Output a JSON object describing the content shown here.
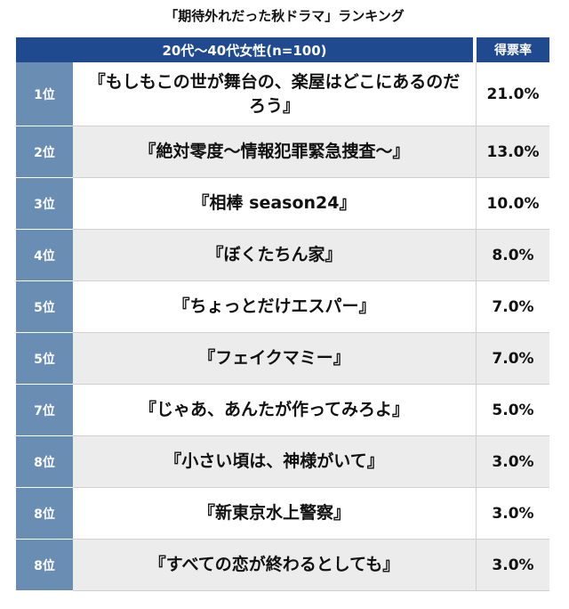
{
  "page": {
    "title": "「期待外れだった秋ドラマ」ランキング"
  },
  "table": {
    "header_group": "20代〜40代女性(n=100)",
    "header_rate": "得票率",
    "rows": [
      {
        "rank": "1位",
        "title": "『もしもこの世が舞台の、楽屋はどこにあるのだろう』",
        "rate": "21.0%"
      },
      {
        "rank": "2位",
        "title": "『絶対零度〜情報犯罪緊急捜査〜』",
        "rate": "13.0%"
      },
      {
        "rank": "3位",
        "title": "『相棒 season24』",
        "rate": "10.0%"
      },
      {
        "rank": "4位",
        "title": "『ぼくたちん家』",
        "rate": "8.0%"
      },
      {
        "rank": "5位",
        "title": "『ちょっとだけエスパー』",
        "rate": "7.0%"
      },
      {
        "rank": "5位",
        "title": "『フェイクマミー』",
        "rate": "7.0%"
      },
      {
        "rank": "7位",
        "title": "『じゃあ、あんたが作ってみろよ』",
        "rate": "5.0%"
      },
      {
        "rank": "8位",
        "title": "『小さい頃は、神様がいて』",
        "rate": "3.0%"
      },
      {
        "rank": "8位",
        "title": "『新東京水上警察』",
        "rate": "3.0%"
      },
      {
        "rank": "8位",
        "title": "『すべての恋が終わるとしても』",
        "rate": "3.0%"
      }
    ]
  },
  "colors": {
    "header_bg": "#1f4a8f",
    "rank_bg": "#6a8eb3",
    "row_alt_bg": "#ececec"
  }
}
